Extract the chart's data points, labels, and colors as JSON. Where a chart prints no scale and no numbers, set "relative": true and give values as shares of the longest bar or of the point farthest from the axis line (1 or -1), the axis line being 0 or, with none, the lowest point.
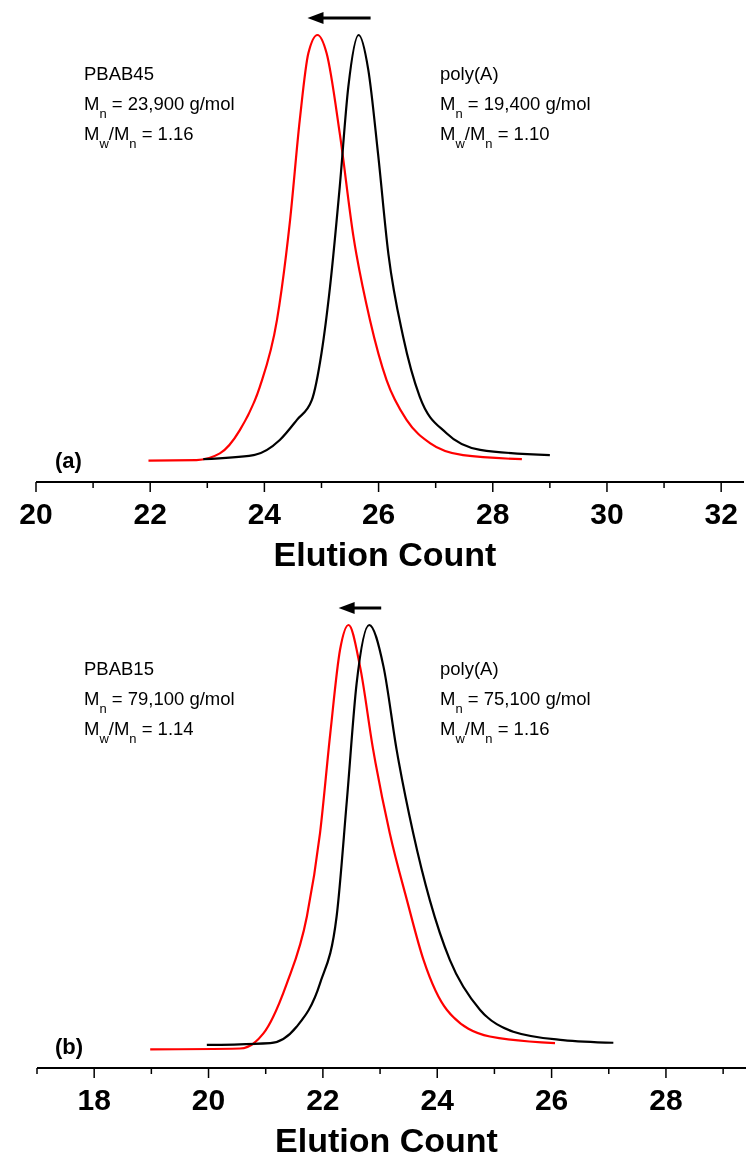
{
  "chart_data": [
    {
      "type": "line",
      "relative": true,
      "xlabel": "Elution Count",
      "xlim": [
        20,
        32.4
      ],
      "xticks": [
        20,
        {
          "value": 21,
          "label": null
        },
        22,
        {
          "value": 23,
          "label": null
        },
        24,
        {
          "value": 25,
          "label": null
        },
        26,
        {
          "value": 27,
          "label": null
        },
        28,
        {
          "value": 29,
          "label": null
        },
        30,
        {
          "value": 31,
          "label": null
        },
        32
      ],
      "line_style": "solid",
      "annotations": [
        "PBAB45",
        "M$_{n}$ = 23,900 g/mol",
        "M$_{w}$/M$_{n}$ = 1.16",
        "poly(A)",
        "M$_{n}$ = 19,400 g/mol",
        "M$_{w}$/M$_{n}$ = 1.10",
        "(a)"
      ],
      "series": [
        {
          "color": "#ff0000",
          "x": [
            21.97,
            22.81,
            23.22,
            23.57,
            23.92,
            24.22,
            24.45,
            24.62,
            24.77,
            24.93,
            25.09,
            25.32,
            25.56,
            25.85,
            26.14,
            26.49,
            26.9,
            27.48,
            28.51
          ],
          "values": [
            0.048,
            0.049,
            0.064,
            0.116,
            0.213,
            0.362,
            0.586,
            0.81,
            0.959,
            1,
            0.959,
            0.78,
            0.549,
            0.362,
            0.228,
            0.139,
            0.087,
            0.06,
            0.051
          ]
        },
        {
          "color": "#000000",
          "x": [
            22.93,
            23.81,
            24.27,
            24.57,
            24.83,
            25.0,
            25.15,
            25.32,
            25.47,
            25.65,
            25.82,
            25.99,
            26.17,
            26.43,
            26.72,
            27.19,
            27.78,
            29.0
          ],
          "values": [
            0.051,
            0.06,
            0.094,
            0.139,
            0.183,
            0.288,
            0.437,
            0.661,
            0.884,
            1,
            0.922,
            0.735,
            0.512,
            0.325,
            0.191,
            0.109,
            0.072,
            0.06
          ]
        }
      ]
    },
    {
      "type": "line",
      "relative": true,
      "xlabel": "Elution Count",
      "xlim": [
        17,
        29.4
      ],
      "xticks": [
        {
          "value": 17,
          "label": null
        },
        18,
        {
          "value": 19,
          "label": null
        },
        20,
        {
          "value": 21,
          "label": null
        },
        22,
        {
          "value": 23,
          "label": null
        },
        24,
        {
          "value": 25,
          "label": null
        },
        26,
        {
          "value": 27,
          "label": null
        },
        28,
        {
          "value": 29,
          "label": null
        }
      ],
      "line_style": "solid",
      "annotations": [
        "PBAB15",
        "M$_{n}$ = 79,100 g/mol",
        "M$_{w}$/M$_{n}$ = 1.14",
        "poly(A)",
        "M$_{n}$ = 75,100 g/mol",
        "M$_{w}$/M$_{n}$ = 1.16",
        "(b)"
      ],
      "series": [
        {
          "color": "#ff0000",
          "x": [
            18.98,
            20.55,
            20.96,
            21.37,
            21.72,
            21.95,
            22.13,
            22.3,
            22.45,
            22.65,
            22.88,
            23.17,
            23.47,
            23.76,
            24.17,
            24.92,
            26.06
          ],
          "values": [
            0.042,
            0.044,
            0.078,
            0.191,
            0.342,
            0.53,
            0.756,
            0.944,
            1,
            0.906,
            0.718,
            0.53,
            0.379,
            0.244,
            0.131,
            0.071,
            0.056
          ]
        },
        {
          "color": "#000000",
          "x": [
            19.97,
            21.08,
            21.54,
            21.95,
            22.24,
            22.42,
            22.59,
            22.81,
            23.06,
            23.29,
            23.58,
            23.87,
            24.22,
            24.75,
            25.33,
            26.2,
            27.08
          ],
          "values": [
            0.052,
            0.056,
            0.093,
            0.191,
            0.342,
            0.605,
            0.868,
            1,
            0.906,
            0.718,
            0.53,
            0.379,
            0.244,
            0.131,
            0.082,
            0.063,
            0.057
          ]
        }
      ]
    }
  ]
}
